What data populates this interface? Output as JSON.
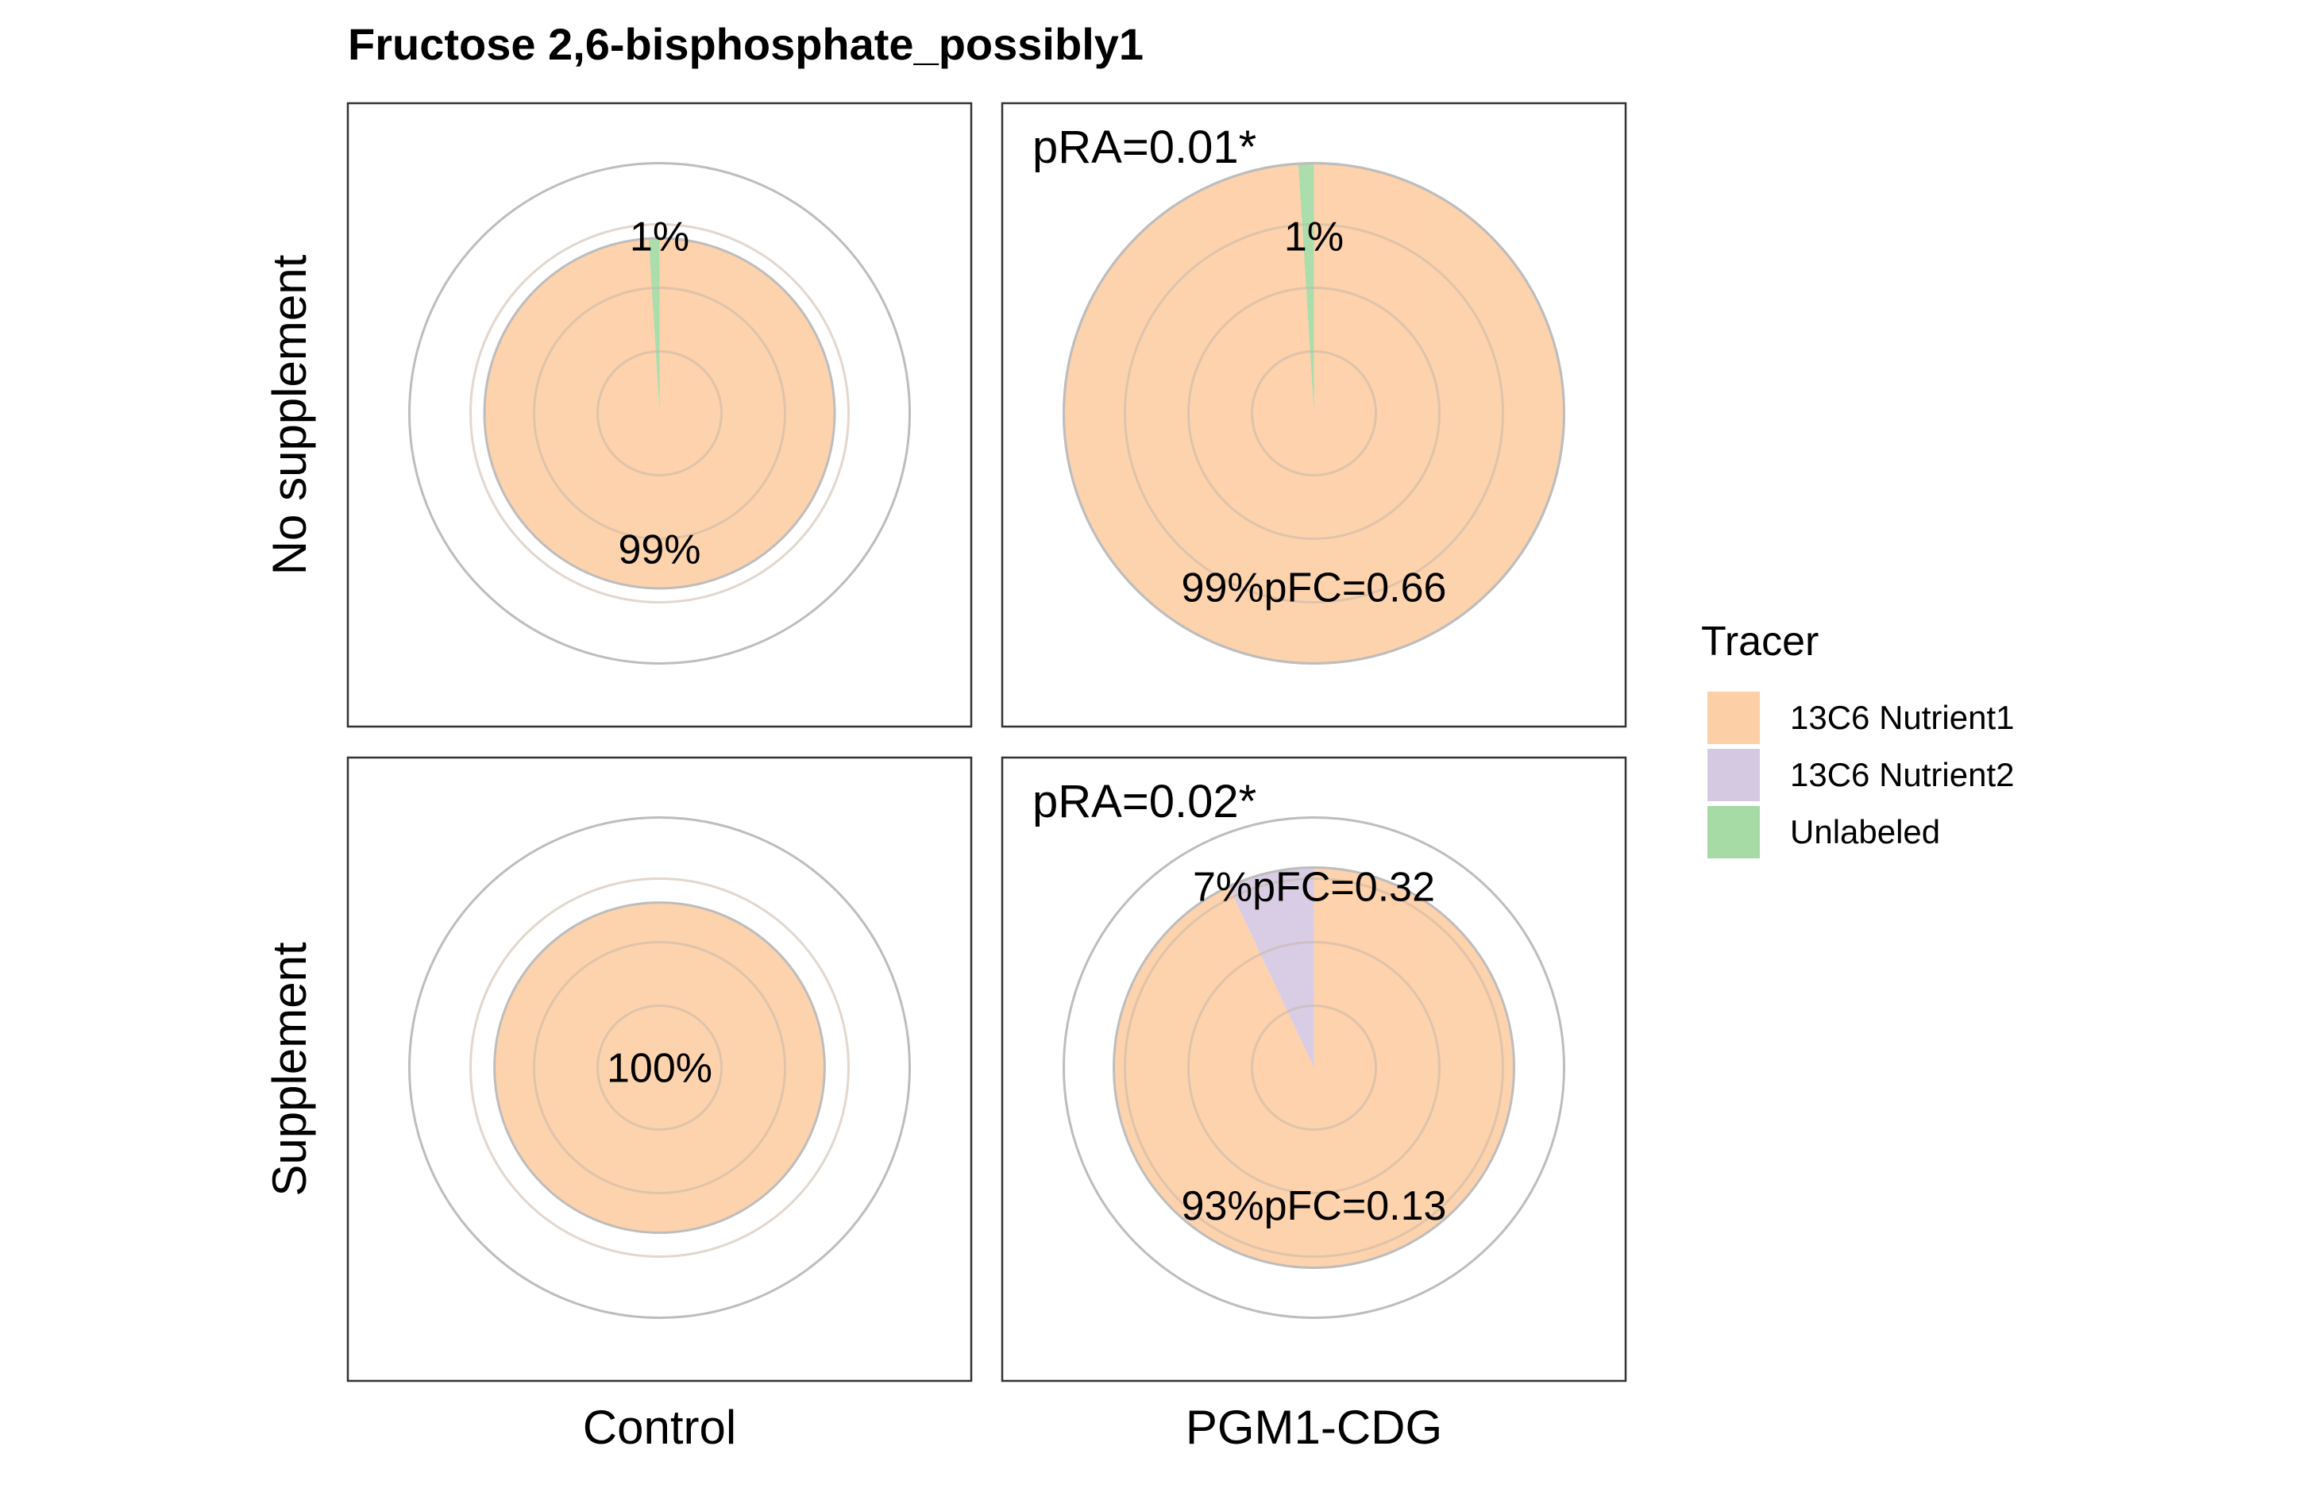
{
  "chart_data": {
    "type": "pie",
    "title": "Fructose 2,6-bisphosphate_possibly1",
    "row_labels": [
      "No supplement",
      "Supplement"
    ],
    "col_labels": [
      "Control",
      "PGM1-CDG"
    ],
    "legend": {
      "title": "Tracer",
      "placement": "right",
      "entries": [
        {
          "name": "13C6 Nutrient1",
          "color": "#FDCFA6"
        },
        {
          "name": "13C6 Nutrient2",
          "color": "#D5C9E2"
        },
        {
          "name": "Unlabeled",
          "color": "#A6DBA6"
        }
      ]
    },
    "panels": [
      {
        "row": "No supplement",
        "col": "Control",
        "pRA": "",
        "relative_size": 0.7,
        "slices": [
          {
            "tracer": "13C6 Nutrient1",
            "value": 99,
            "label": "99%",
            "pFC": ""
          },
          {
            "tracer": "Unlabeled",
            "value": 1,
            "label": "1%",
            "pFC": ""
          }
        ]
      },
      {
        "row": "No supplement",
        "col": "PGM1-CDG",
        "pRA": "pRA=0.01*",
        "relative_size": 1.0,
        "slices": [
          {
            "tracer": "13C6 Nutrient1",
            "value": 99,
            "label": "99%",
            "pFC": "pFC=0.66"
          },
          {
            "tracer": "Unlabeled",
            "value": 1,
            "label": "1%",
            "pFC": ""
          }
        ]
      },
      {
        "row": "Supplement",
        "col": "Control",
        "pRA": "",
        "relative_size": 0.66,
        "slices": [
          {
            "tracer": "13C6 Nutrient1",
            "value": 100,
            "label": "100%",
            "pFC": ""
          }
        ]
      },
      {
        "row": "Supplement",
        "col": "PGM1-CDG",
        "pRA": "pRA=0.02*",
        "relative_size": 0.8,
        "slices": [
          {
            "tracer": "13C6 Nutrient1",
            "value": 93,
            "label": "93%",
            "pFC": "pFC=0.13"
          },
          {
            "tracer": "13C6 Nutrient2",
            "value": 7,
            "label": "7%",
            "pFC": "pFC=0.32"
          }
        ]
      }
    ],
    "grid": true
  }
}
